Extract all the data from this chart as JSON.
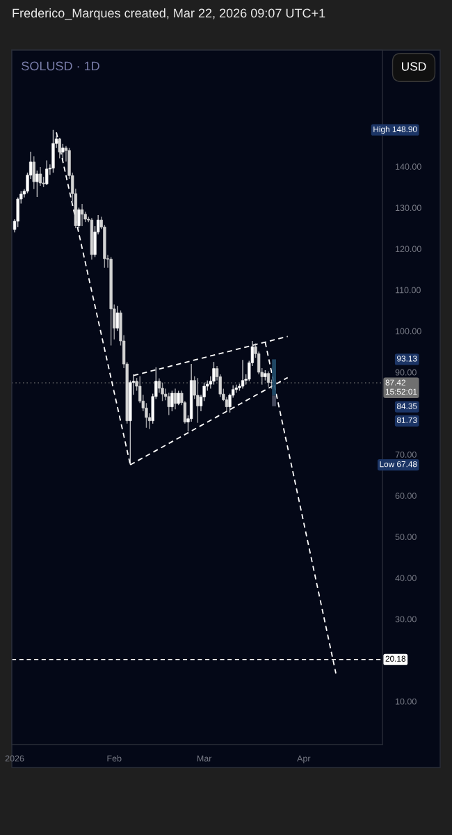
{
  "chart_data": {
    "type": "candlestick",
    "subtitle": "Frederico_Marques created, Mar 22, 2026 09:07 UTC+1",
    "title": "SOLUSD · 1D",
    "ylabel": "USD",
    "colors": [
      "#ffffff",
      "#ffffff",
      "#ffffff",
      "#ffffff",
      "#ffffff",
      "#ffffff",
      "#d4d4d4",
      "#ffffff",
      "#d4d4d4",
      "#d4d4d4",
      "#ffffff",
      "#ffffff",
      "#ffffff",
      "#ffffff",
      "#d4d4d4",
      "#ffffff",
      "#d4d4d4",
      "#d4d4d4",
      "#d4d4d4",
      "#d4d4d4",
      "#ffffff",
      "#d4d4d4",
      "#d4d4d4",
      "#d4d4d4",
      "#d4d4d4",
      "#ffffff",
      "#ffffff",
      "#d4d4d4",
      "#d4d4d4",
      "#d4d4d4",
      "#d4d4d4",
      "#d4d4d4",
      "#ffffff",
      "#d4d4d4",
      "#d4d4d4",
      "#d4d4d4",
      "#ffffff",
      "#ffffff",
      "#d4d4d4",
      "#d4d4d4",
      "#d4d4d4",
      "#d4d4d4",
      "#d4d4d4",
      "#ffffff",
      "#ffffff",
      "#d4d4d4",
      "#d4d4d4",
      "#d4d4d4",
      "#d4d4d4",
      "#ffffff",
      "#d4d4d4",
      "#ffffff",
      "#d4d4d4",
      "#d4d4d4",
      "#ffffff",
      "#ffffff",
      "#d4d4d4",
      "#d4d4d4",
      "#ffffff",
      "#ffffff",
      "#ffffff",
      "#ffffff",
      "#ffffff",
      "#d4d4d4",
      "#d4d4d4",
      "#d4d4d4",
      "#d4d4d4",
      "#ffffff",
      "#ffffff",
      "#ffffff",
      "#ffffff",
      "#ffffff",
      "#ffffff",
      "#ffffff",
      "#ffffff",
      "#d4d4d4",
      "#d4d4d4",
      "#d4d4d4",
      "#ffffff",
      "#d4d4d4",
      "#d4d4d4"
    ],
    "x": [
      "2026-01-01",
      "2026-01-02",
      "2026-01-03",
      "2026-01-04",
      "2026-01-05",
      "2026-01-06",
      "2026-01-07",
      "2026-01-08",
      "2026-01-09",
      "2026-01-10",
      "2026-01-11",
      "2026-01-12",
      "2026-01-13",
      "2026-01-14",
      "2026-01-15",
      "2026-01-16",
      "2026-01-17",
      "2026-01-18",
      "2026-01-19",
      "2026-01-20",
      "2026-01-21",
      "2026-01-22",
      "2026-01-23",
      "2026-01-24",
      "2026-01-25",
      "2026-01-26",
      "2026-01-27",
      "2026-01-28",
      "2026-01-29",
      "2026-01-30",
      "2026-01-31",
      "2026-02-01",
      "2026-02-02",
      "2026-02-03",
      "2026-02-04",
      "2026-02-05",
      "2026-02-06",
      "2026-02-07",
      "2026-02-08",
      "2026-02-09",
      "2026-02-10",
      "2026-02-11",
      "2026-02-12",
      "2026-02-13",
      "2026-02-14",
      "2026-02-15",
      "2026-02-16",
      "2026-02-17",
      "2026-02-18",
      "2026-02-19",
      "2026-02-20",
      "2026-02-21",
      "2026-02-22",
      "2026-02-23",
      "2026-02-24",
      "2026-02-25",
      "2026-02-26",
      "2026-02-27",
      "2026-02-28",
      "2026-03-01",
      "2026-03-02",
      "2026-03-03",
      "2026-03-04",
      "2026-03-05",
      "2026-03-06",
      "2026-03-07",
      "2026-03-08",
      "2026-03-09",
      "2026-03-10",
      "2026-03-11",
      "2026-03-12",
      "2026-03-13",
      "2026-03-14",
      "2026-03-15",
      "2026-03-16",
      "2026-03-17",
      "2026-03-18",
      "2026-03-19",
      "2026-03-20",
      "2026-03-21",
      "2026-03-22"
    ],
    "ohlc": [
      [
        124.7,
        127.2,
        124.0,
        126.7
      ],
      [
        126.7,
        132.5,
        125.3,
        132.1
      ],
      [
        132.1,
        134.0,
        131.0,
        133.3
      ],
      [
        133.3,
        134.5,
        132.5,
        134.0
      ],
      [
        134.0,
        138.5,
        133.5,
        137.9
      ],
      [
        137.9,
        143.6,
        137.0,
        141.1
      ],
      [
        141.1,
        142.5,
        134.5,
        136.3
      ],
      [
        136.3,
        139.0,
        132.6,
        138.2
      ],
      [
        138.2,
        139.9,
        135.3,
        136.0
      ],
      [
        136.0,
        137.5,
        135.0,
        135.8
      ],
      [
        135.8,
        141.5,
        135.5,
        139.4
      ],
      [
        139.4,
        140.5,
        138.0,
        139.6
      ],
      [
        139.6,
        148.9,
        138.5,
        145.6
      ],
      [
        145.6,
        147.5,
        144.5,
        146.7
      ],
      [
        146.7,
        147.0,
        142.0,
        143.5
      ],
      [
        143.5,
        145.5,
        141.5,
        144.5
      ],
      [
        144.5,
        145.0,
        141.2,
        143.9
      ],
      [
        143.9,
        144.5,
        137.0,
        137.8
      ],
      [
        137.8,
        138.5,
        131.5,
        133.4
      ],
      [
        133.4,
        134.6,
        125.0,
        125.6
      ],
      [
        125.6,
        130.0,
        125.0,
        129.5
      ],
      [
        129.5,
        130.9,
        125.5,
        128.4
      ],
      [
        128.4,
        129.0,
        126.5,
        127.2
      ],
      [
        127.2,
        127.8,
        126.5,
        127.0
      ],
      [
        127.0,
        127.5,
        117.4,
        118.6
      ],
      [
        118.6,
        125.5,
        118.0,
        124.1
      ],
      [
        124.1,
        128.2,
        123.5,
        127.0
      ],
      [
        127.0,
        127.8,
        124.8,
        125.3
      ],
      [
        125.3,
        125.8,
        115.4,
        117.6
      ],
      [
        117.6,
        118.5,
        115.4,
        117.5
      ],
      [
        117.5,
        118.0,
        96.5,
        105.4
      ],
      [
        105.4,
        106.5,
        98.0,
        100.7
      ],
      [
        100.7,
        106.1,
        100.0,
        104.4
      ],
      [
        104.4,
        105.0,
        96.5,
        97.6
      ],
      [
        97.6,
        99.0,
        91.0,
        92.0
      ],
      [
        92.0,
        92.5,
        77.5,
        78.2
      ],
      [
        78.2,
        88.0,
        67.48,
        87.5
      ],
      [
        87.5,
        89.5,
        84.5,
        87.8
      ],
      [
        87.8,
        88.6,
        85.5,
        86.6
      ],
      [
        86.6,
        89.0,
        82.5,
        83.0
      ],
      [
        83.0,
        84.5,
        80.5,
        81.3
      ],
      [
        81.3,
        82.5,
        76.5,
        79.0
      ],
      [
        79.0,
        80.0,
        76.2,
        78.2
      ],
      [
        78.2,
        84.8,
        77.5,
        84.1
      ],
      [
        84.1,
        91.2,
        83.5,
        87.8
      ],
      [
        87.8,
        88.5,
        85.0,
        86.1
      ],
      [
        86.1,
        87.5,
        83.0,
        84.7
      ],
      [
        84.7,
        86.0,
        83.2,
        84.1
      ],
      [
        84.1,
        85.0,
        79.6,
        81.6
      ],
      [
        81.6,
        85.5,
        80.5,
        84.9
      ],
      [
        84.9,
        86.0,
        81.0,
        82.4
      ],
      [
        82.4,
        85.5,
        82.0,
        84.9
      ],
      [
        84.9,
        85.5,
        82.0,
        82.6
      ],
      [
        82.6,
        83.0,
        77.5,
        77.9
      ],
      [
        77.9,
        79.5,
        75.6,
        78.7
      ],
      [
        78.7,
        92.0,
        78.0,
        88.0
      ],
      [
        88.0,
        89.0,
        83.5,
        84.4
      ],
      [
        84.4,
        88.6,
        77.7,
        81.8
      ],
      [
        81.8,
        84.5,
        80.5,
        84.0
      ],
      [
        84.0,
        87.5,
        83.0,
        86.6
      ],
      [
        86.6,
        88.0,
        85.5,
        87.1
      ],
      [
        87.1,
        89.0,
        86.0,
        87.8
      ],
      [
        87.8,
        92.5,
        87.0,
        90.9
      ],
      [
        90.9,
        91.5,
        88.0,
        88.9
      ],
      [
        88.9,
        89.5,
        84.0,
        84.7
      ],
      [
        84.7,
        86.0,
        83.0,
        83.3
      ],
      [
        83.3,
        84.0,
        80.5,
        81.6
      ],
      [
        81.6,
        84.8,
        80.2,
        84.4
      ],
      [
        84.4,
        86.8,
        83.8,
        85.8
      ],
      [
        85.8,
        87.0,
        85.0,
        86.2
      ],
      [
        86.2,
        87.2,
        85.5,
        86.6
      ],
      [
        86.6,
        93.0,
        86.0,
        88.0
      ],
      [
        88.0,
        89.5,
        87.0,
        88.3
      ],
      [
        88.3,
        92.8,
        87.8,
        92.3
      ],
      [
        92.3,
        97.6,
        91.5,
        96.2
      ],
      [
        96.2,
        97.0,
        93.5,
        94.5
      ],
      [
        94.5,
        95.0,
        89.5,
        90.0
      ],
      [
        90.0,
        91.0,
        87.0,
        88.9
      ],
      [
        88.9,
        90.5,
        88.0,
        89.7
      ],
      [
        89.7,
        90.2,
        86.5,
        87.5
      ],
      [
        87.5,
        88.2,
        86.0,
        87.42
      ]
    ],
    "series": [
      {
        "type": "line",
        "x": [
          "2026-01-14",
          "2026-02-06"
        ],
        "values": [
          148.3,
          67.5
        ],
        "color": "#ffffff",
        "line_style": "dashed"
      },
      {
        "type": "line",
        "x": [
          "2026-02-06",
          "2026-03-27"
        ],
        "values": [
          67.5,
          88.7
        ],
        "color": "#ffffff",
        "line_style": "dashed"
      },
      {
        "type": "line",
        "x": [
          "2026-02-07",
          "2026-03-27"
        ],
        "values": [
          89.2,
          98.7
        ],
        "color": "#ffffff",
        "line_style": "dashed"
      },
      {
        "type": "line",
        "x": [
          "2026-03-20",
          "2026-04-11"
        ],
        "values": [
          97.3,
          16.8
        ],
        "color": "#ffffff",
        "line_style": "dashed"
      },
      {
        "type": "bar",
        "x": [
          "2026-03-22T18:00"
        ],
        "base": [
          84.35
        ],
        "values": [
          8.78
        ],
        "color": "#24506e"
      },
      {
        "type": "bar",
        "x": [
          "2026-03-22T18:00"
        ],
        "base": [
          81.73
        ],
        "values": [
          2.62
        ],
        "color": "#4e5266"
      }
    ],
    "xlim": [
      "2025-12-31T03:00",
      "2026-04-25T12:00"
    ],
    "xticks": [
      {
        "value": "2026-01-01",
        "label": "2026"
      },
      {
        "value": "2026-02-01",
        "label": "Feb"
      },
      {
        "value": "2026-03-01",
        "label": "Mar"
      },
      {
        "value": "2026-04-01",
        "label": "Apr"
      }
    ],
    "ylim": [
      -0.5,
      168.3
    ],
    "yticks": [
      {
        "value": 10,
        "label": "10.00"
      },
      {
        "value": 30,
        "label": "30.00"
      },
      {
        "value": 40,
        "label": "40.00"
      },
      {
        "value": 50,
        "label": "50.00"
      },
      {
        "value": 60,
        "label": "60.00"
      },
      {
        "value": 70,
        "label": "70.00"
      },
      {
        "value": 90,
        "label": "90.00"
      },
      {
        "value": 100,
        "label": "100.00"
      },
      {
        "value": 110,
        "label": "110.00"
      },
      {
        "value": 120,
        "label": "120.00"
      },
      {
        "value": 130,
        "label": "130.00"
      },
      {
        "value": 140,
        "label": "140.00"
      }
    ],
    "ref_lines": [
      {
        "axis": "y",
        "value": 87.42,
        "label": "87.42\n15:52:01",
        "color": "#707070",
        "line_style": "dotted"
      },
      {
        "axis": "y",
        "value": 20.18,
        "label": "20.18",
        "color": "#ffffff",
        "line_style": "dashed"
      }
    ],
    "annotations": [
      "High 148.90",
      "93.13",
      "84.35",
      "81.73",
      "Low 67.48"
    ]
  }
}
